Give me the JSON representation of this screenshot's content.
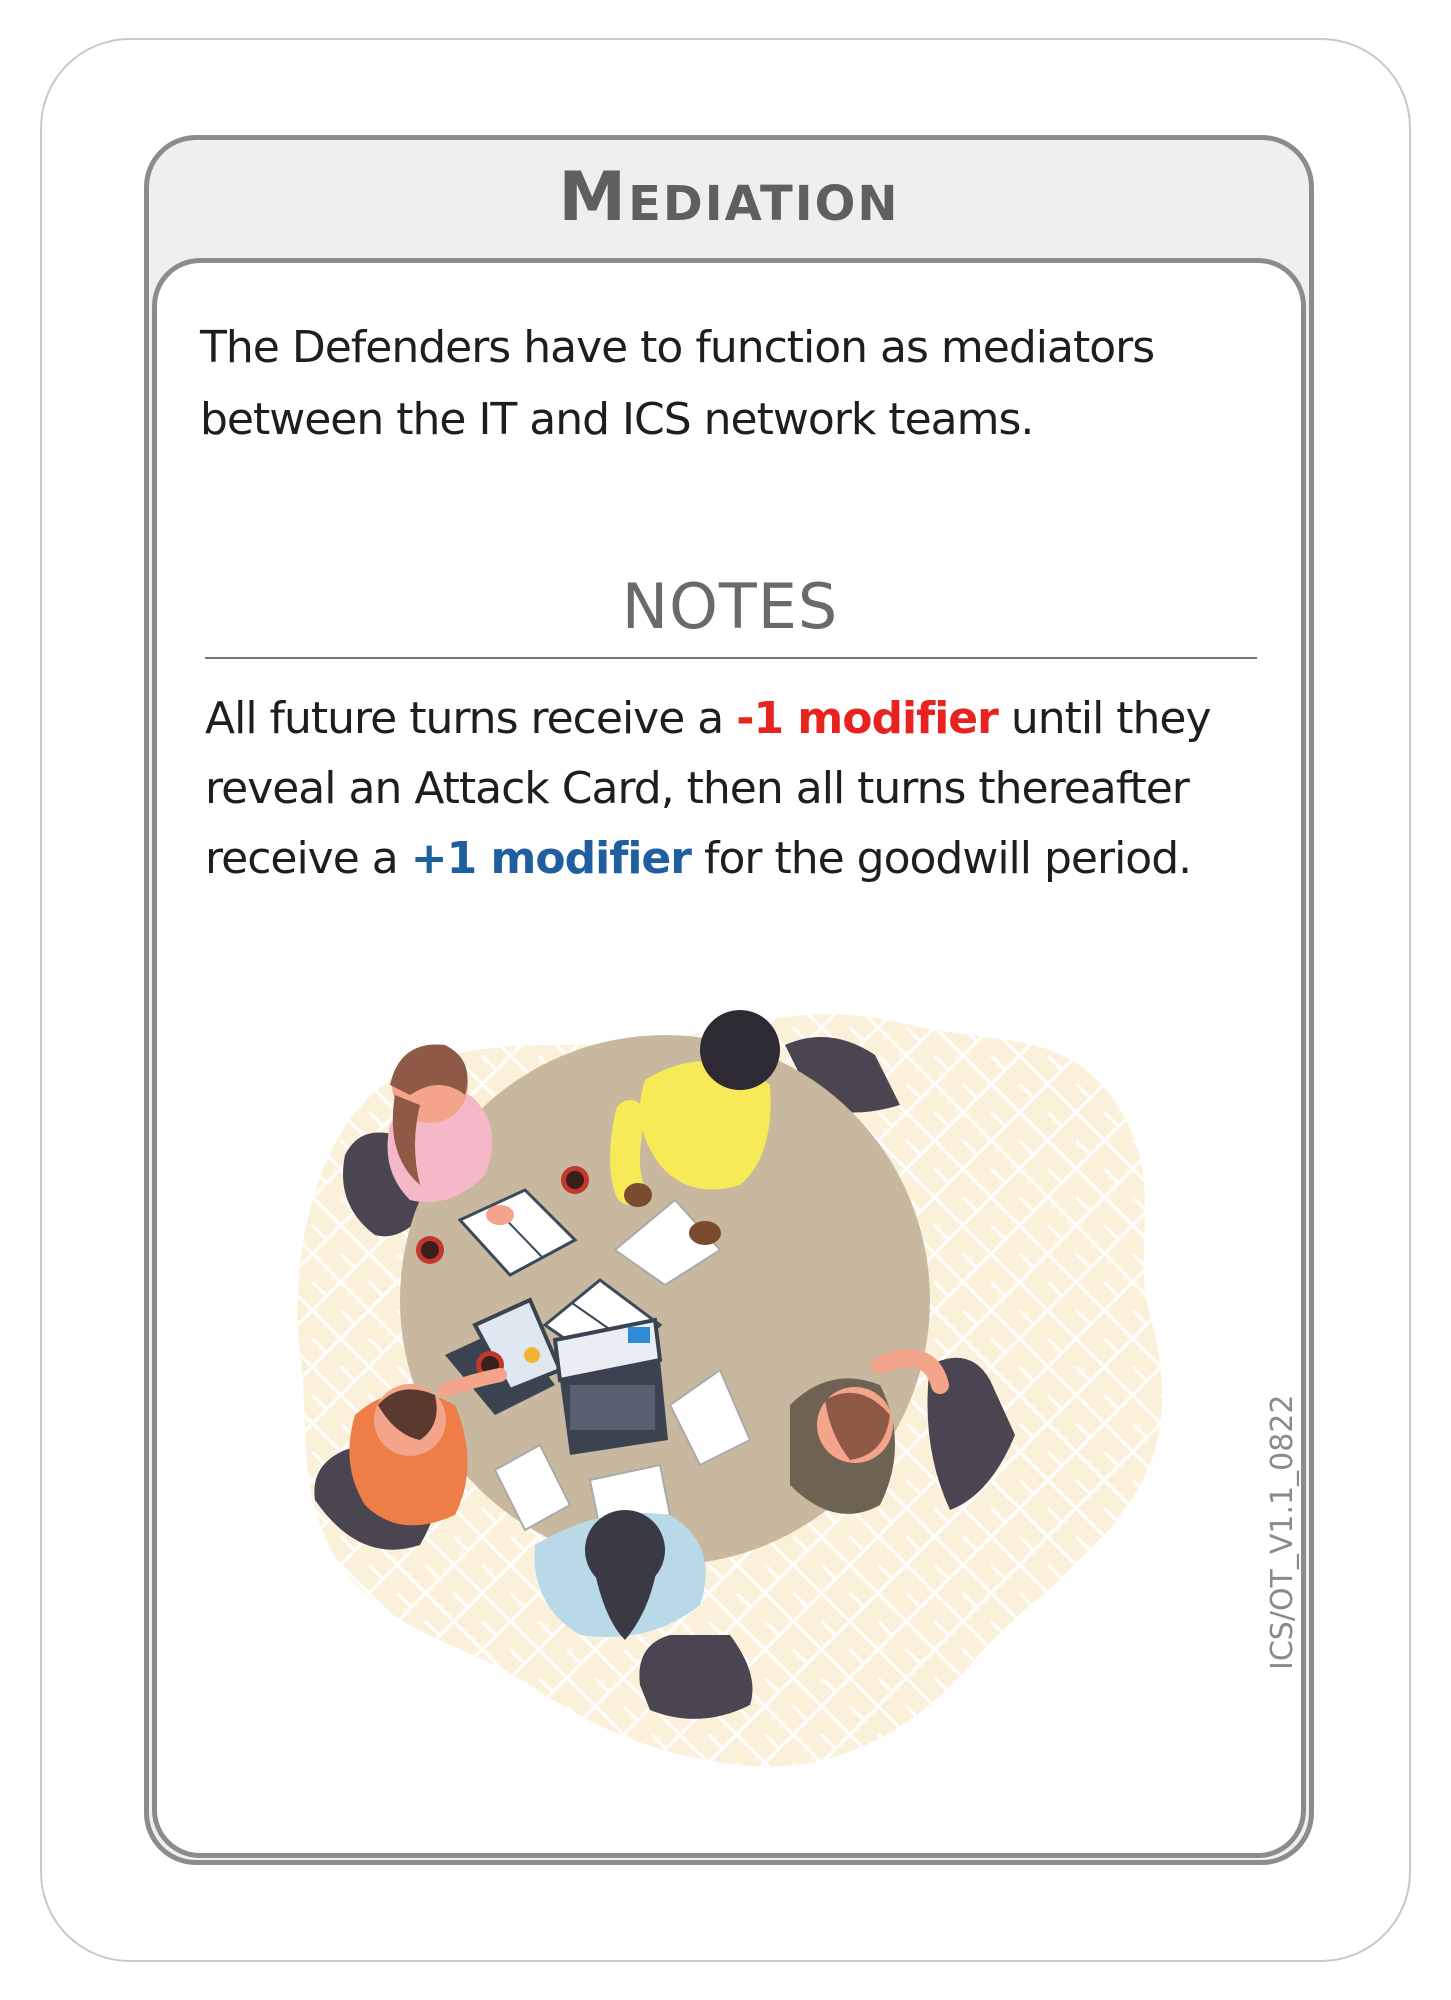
{
  "card": {
    "title": "Mediation",
    "description": "The Defenders have to function as mediators between the IT and ICS network teams.",
    "notes_heading": "NOTES",
    "notes": {
      "part1": "All future turns receive a ",
      "negative_modifier": "-1 modifier",
      "part2": " until they reveal an Attack Card, then all turns thereafter receive a ",
      "positive_modifier": "+1 modifier",
      "part3": " for the goodwill period."
    },
    "version": "ICS/OT_V1.1_0822"
  },
  "colors": {
    "negative": "#e8231f",
    "positive": "#1f5fa0",
    "frame": "#8c8c8c"
  },
  "illustration": {
    "subject": "people-meeting-around-table-icon"
  }
}
